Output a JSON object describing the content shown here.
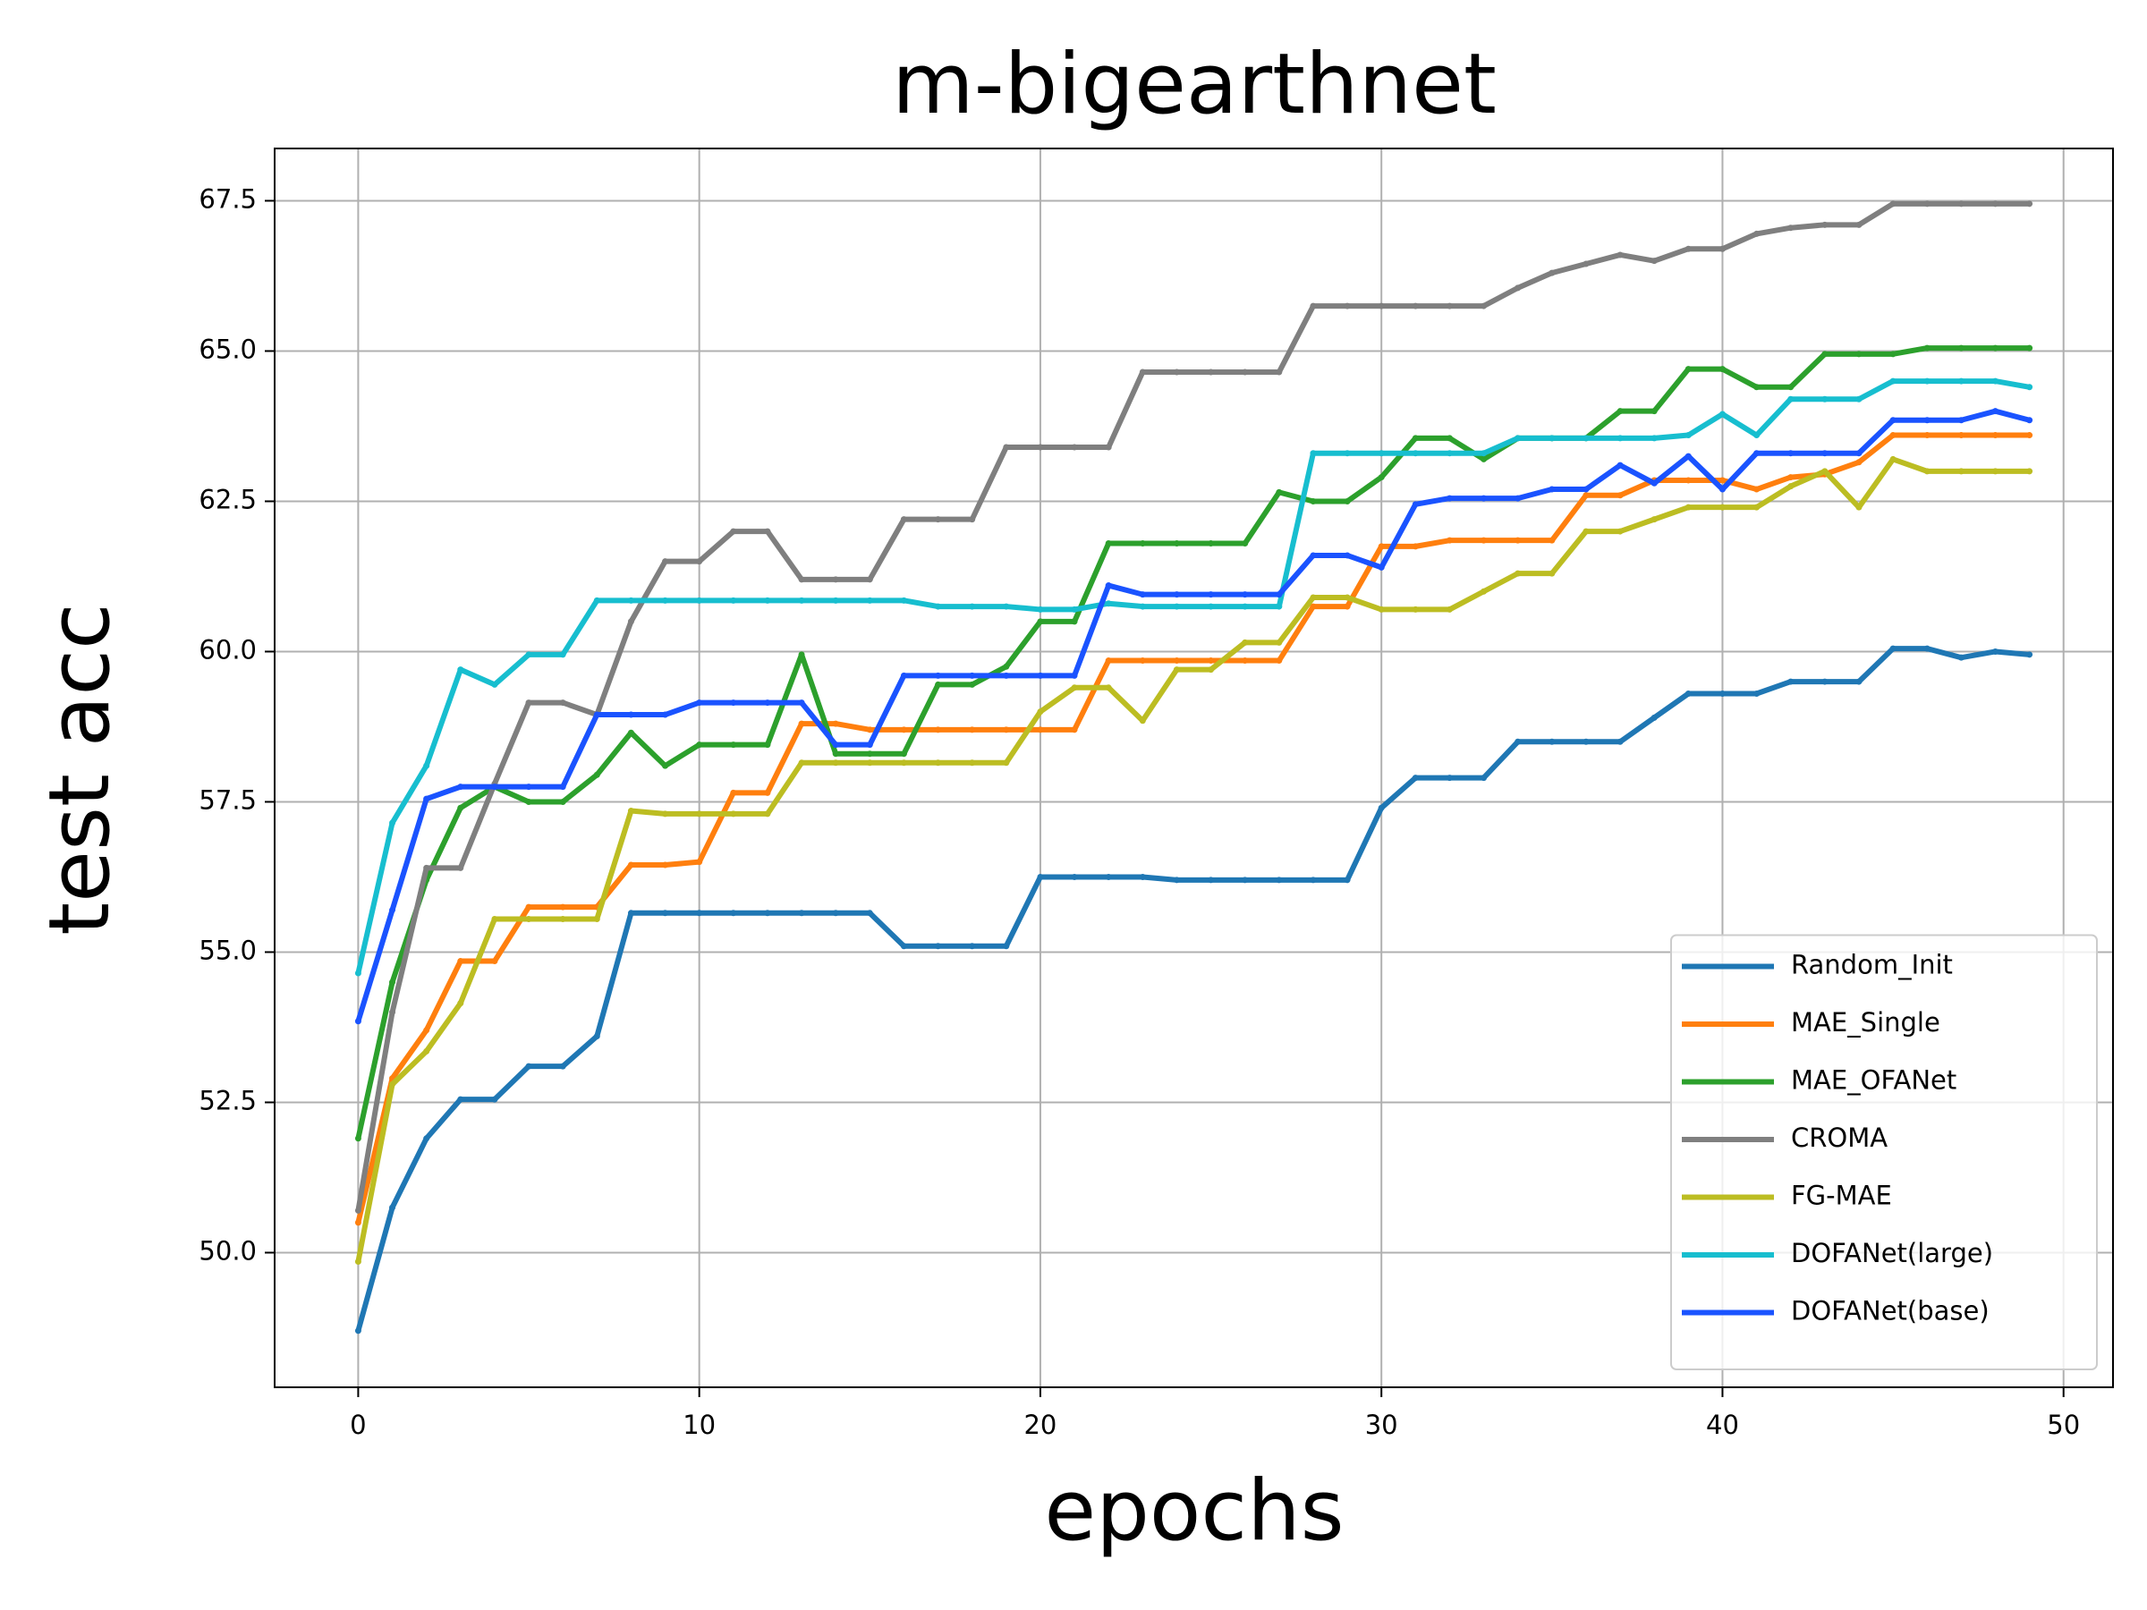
{
  "chart_data": {
    "type": "line",
    "title": "m-bigearthnet",
    "x_label": "epochs",
    "y_label": "test acc",
    "x": [
      0,
      1,
      2,
      3,
      4,
      5,
      6,
      7,
      8,
      9,
      10,
      11,
      12,
      13,
      14,
      15,
      16,
      17,
      18,
      19,
      20,
      21,
      22,
      23,
      24,
      25,
      26,
      27,
      28,
      29,
      30,
      31,
      32,
      33,
      34,
      35,
      36,
      37,
      38,
      39,
      40,
      41,
      42,
      43,
      44,
      45,
      46,
      47,
      48,
      49
    ],
    "xlim": [
      -2.45,
      51.45
    ],
    "ylim": [
      47.76,
      68.37
    ],
    "xticks": [
      0,
      10,
      20,
      30,
      40,
      50
    ],
    "yticks": [
      {
        "value": 50,
        "label": "50.0"
      },
      52.5,
      {
        "value": 55,
        "label": "55.0"
      },
      57.5,
      {
        "value": 60,
        "label": "60.0"
      },
      62.5,
      {
        "value": 65,
        "label": "65.0"
      },
      67.5
    ],
    "grid": true,
    "legend_position": "lower right",
    "series": [
      {
        "name": "Random_Init",
        "color": "#1f77b4",
        "values": [
          48.7,
          50.75,
          51.9,
          52.55,
          52.55,
          53.1,
          53.1,
          53.6,
          55.65,
          55.65,
          55.65,
          55.65,
          55.65,
          55.65,
          55.65,
          55.65,
          55.1,
          55.1,
          55.1,
          55.1,
          56.25,
          56.25,
          56.25,
          56.25,
          56.2,
          56.2,
          56.2,
          56.2,
          56.2,
          56.2,
          57.4,
          57.9,
          57.9,
          57.9,
          58.5,
          58.5,
          58.5,
          58.5,
          58.9,
          59.3,
          59.3,
          59.3,
          59.5,
          59.5,
          59.5,
          60.05,
          60.05,
          59.9,
          60.0,
          59.95
        ]
      },
      {
        "name": "MAE_Single",
        "color": "#ff7f0e",
        "values": [
          50.5,
          52.9,
          53.7,
          54.85,
          54.85,
          55.75,
          55.75,
          55.75,
          56.45,
          56.45,
          56.5,
          57.65,
          57.65,
          58.8,
          58.8,
          58.7,
          58.7,
          58.7,
          58.7,
          58.7,
          58.7,
          58.7,
          59.85,
          59.85,
          59.85,
          59.85,
          59.85,
          59.85,
          60.75,
          60.75,
          61.75,
          61.75,
          61.85,
          61.85,
          61.85,
          61.85,
          62.6,
          62.6,
          62.85,
          62.85,
          62.85,
          62.7,
          62.9,
          62.95,
          63.15,
          63.6,
          63.6,
          63.6,
          63.6,
          63.6
        ]
      },
      {
        "name": "MAE_OFANet",
        "color": "#2ca02c",
        "values": [
          51.9,
          54.5,
          56.2,
          57.4,
          57.75,
          57.5,
          57.5,
          57.95,
          58.65,
          58.1,
          58.45,
          58.45,
          58.45,
          59.95,
          58.3,
          58.3,
          58.3,
          59.45,
          59.45,
          59.75,
          60.5,
          60.5,
          61.8,
          61.8,
          61.8,
          61.8,
          61.8,
          62.65,
          62.5,
          62.5,
          62.9,
          63.55,
          63.55,
          63.2,
          63.55,
          63.55,
          63.55,
          64.0,
          64.0,
          64.7,
          64.7,
          64.4,
          64.4,
          64.95,
          64.95,
          64.95,
          65.05,
          65.05,
          65.05,
          65.05
        ]
      },
      {
        "name": "CROMA",
        "color": "#7f7f7f",
        "values": [
          50.7,
          54.0,
          56.4,
          56.4,
          57.8,
          59.15,
          59.15,
          58.95,
          60.5,
          61.5,
          61.5,
          62.0,
          62.0,
          61.2,
          61.2,
          61.2,
          62.2,
          62.2,
          62.2,
          63.4,
          63.4,
          63.4,
          63.4,
          64.65,
          64.65,
          64.65,
          64.65,
          64.65,
          65.75,
          65.75,
          65.75,
          65.75,
          65.75,
          65.75,
          66.05,
          66.3,
          66.45,
          66.6,
          66.5,
          66.7,
          66.7,
          66.95,
          67.05,
          67.1,
          67.1,
          67.45,
          67.45,
          67.45,
          67.45,
          67.45
        ]
      },
      {
        "name": "FG-MAE",
        "color": "#bcbd22",
        "values": [
          49.85,
          52.8,
          53.35,
          54.15,
          55.55,
          55.55,
          55.55,
          55.55,
          57.35,
          57.3,
          57.3,
          57.3,
          57.3,
          58.15,
          58.15,
          58.15,
          58.15,
          58.15,
          58.15,
          58.15,
          59.0,
          59.4,
          59.4,
          58.85,
          59.7,
          59.7,
          60.15,
          60.15,
          60.9,
          60.9,
          60.7,
          60.7,
          60.7,
          61.0,
          61.3,
          61.3,
          62.0,
          62.0,
          62.2,
          62.4,
          62.4,
          62.4,
          62.75,
          63.0,
          62.4,
          63.2,
          63.0,
          63.0,
          63.0,
          63.0
        ]
      },
      {
        "name": "DOFANet(large)",
        "color": "#17becf",
        "values": [
          54.65,
          57.15,
          58.1,
          59.7,
          59.45,
          59.95,
          59.95,
          60.85,
          60.85,
          60.85,
          60.85,
          60.85,
          60.85,
          60.85,
          60.85,
          60.85,
          60.85,
          60.75,
          60.75,
          60.75,
          60.7,
          60.7,
          60.8,
          60.75,
          60.75,
          60.75,
          60.75,
          60.75,
          63.3,
          63.3,
          63.3,
          63.3,
          63.3,
          63.3,
          63.55,
          63.55,
          63.55,
          63.55,
          63.55,
          63.6,
          63.95,
          63.6,
          64.2,
          64.2,
          64.2,
          64.5,
          64.5,
          64.5,
          64.5,
          64.4
        ]
      },
      {
        "name": "DOFANet(base)",
        "color": "#1a53ff",
        "values": [
          53.85,
          55.7,
          57.55,
          57.75,
          57.75,
          57.75,
          57.75,
          58.95,
          58.95,
          58.95,
          59.15,
          59.15,
          59.15,
          59.15,
          58.45,
          58.45,
          59.6,
          59.6,
          59.6,
          59.6,
          59.6,
          59.6,
          61.1,
          60.95,
          60.95,
          60.95,
          60.95,
          60.95,
          61.6,
          61.6,
          61.4,
          62.45,
          62.55,
          62.55,
          62.55,
          62.7,
          62.7,
          63.1,
          62.8,
          63.25,
          62.7,
          63.3,
          63.3,
          63.3,
          63.3,
          63.85,
          63.85,
          63.85,
          64.0,
          63.85
        ]
      }
    ]
  }
}
